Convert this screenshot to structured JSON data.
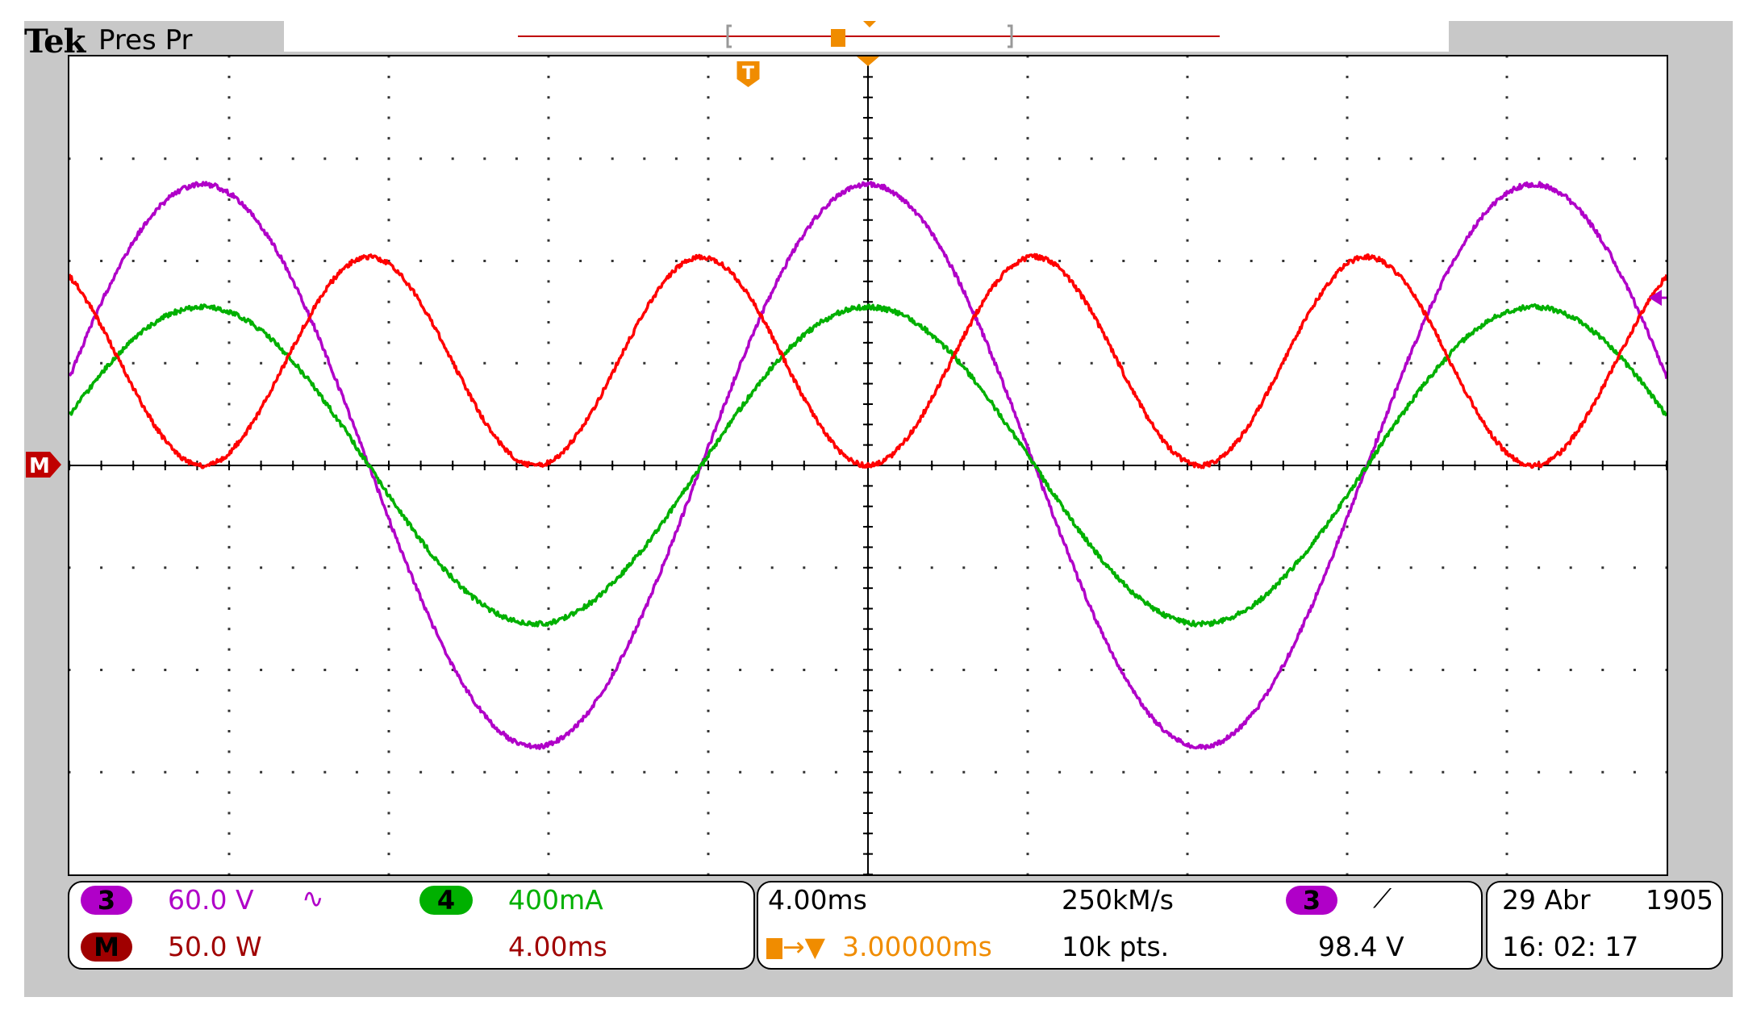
{
  "header": {
    "brand": "Tek",
    "acq_state": "Pres Pr"
  },
  "colors": {
    "ch3": "#b000c8",
    "ch4": "#00b000",
    "math": "#ff0000",
    "trigger": "#f08c00",
    "math_badge": "#a00000"
  },
  "markers": {
    "trigger_icon": "T",
    "math_ground_icon": "M",
    "ch3_level_icon": "arrow-left-icon"
  },
  "readouts": {
    "ch3": {
      "badge": "3",
      "scale": "60.0 V",
      "coupling_icon": "∿"
    },
    "ch4": {
      "badge": "4",
      "scale": "400mA"
    },
    "math": {
      "badge": "M",
      "scale": "50.0 W",
      "timebase": "4.00ms"
    },
    "horizontal": {
      "timebase": "4.00ms",
      "delay": "3.00000ms",
      "sample_rate": "250kM/s",
      "record_length": "10k pts."
    },
    "trigger": {
      "source_badge": "3",
      "slope_icon": "⟋",
      "level": "98.4 V"
    },
    "datetime": {
      "date": "29 Abr",
      "year": "1905",
      "time": "16: 02: 17"
    }
  },
  "chart_data": {
    "type": "line",
    "title": "",
    "xlabel": "",
    "ylabel": "",
    "grid": true,
    "divisions": {
      "x": 10,
      "y": 8
    },
    "xlim": [
      -20,
      20
    ],
    "x_unit": "ms",
    "series": [
      {
        "name": "3",
        "unit": "V",
        "volts_per_div": 60,
        "amplitude": 165,
        "offset": 0,
        "period_ms": 16.67,
        "phase_deg": 0,
        "color": "#b000c8"
      },
      {
        "name": "4",
        "unit": "A",
        "volts_per_div": 0.4,
        "amplitude": 0.62,
        "offset": 0,
        "period_ms": 16.67,
        "phase_deg": 0,
        "color": "#00b000"
      },
      {
        "name": "M",
        "unit": "W",
        "volts_per_div": 50,
        "amplitude": 51,
        "offset": 51,
        "period_ms": 8.33,
        "phase_deg": 0,
        "color": "#ff0000"
      }
    ]
  }
}
